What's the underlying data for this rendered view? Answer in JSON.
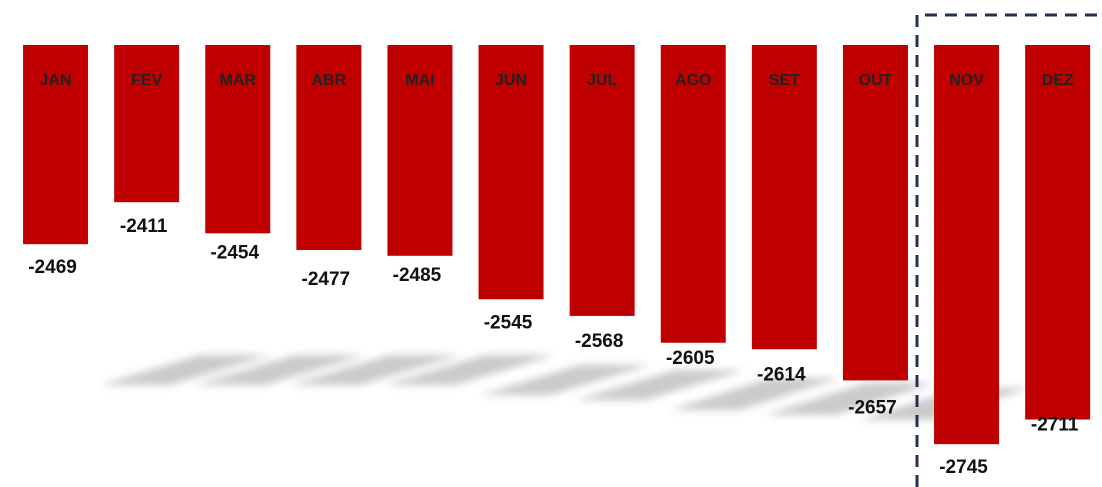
{
  "chart_data": {
    "type": "bar",
    "categories": [
      "JAN",
      "FEV",
      "MAR",
      "ABR",
      "MAI",
      "JUN",
      "JUL",
      "AGO",
      "SET",
      "OUT",
      "NOV",
      "DEZ"
    ],
    "values": [
      -2469,
      -2411,
      -2454,
      -2477,
      -2485,
      -2545,
      -2568,
      -2605,
      -2614,
      -2657,
      -2745,
      -2711
    ],
    "color": "#c00000",
    "ylim": [
      -2800,
      -2194
    ]
  }
}
